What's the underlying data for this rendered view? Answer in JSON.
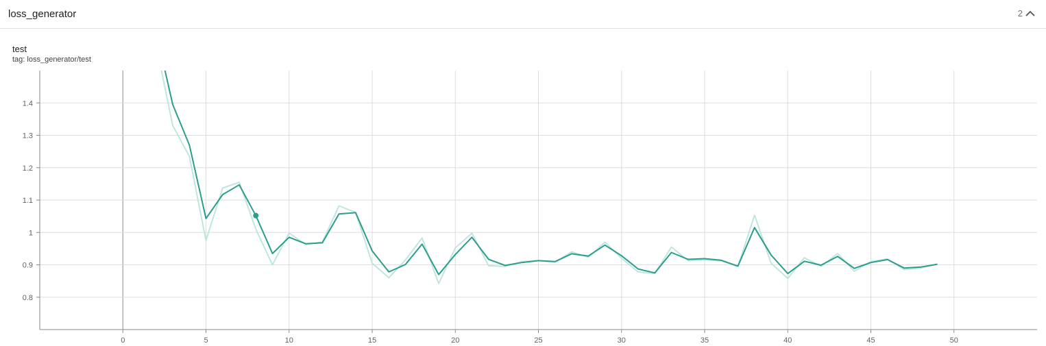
{
  "group": {
    "title": "loss_generator",
    "count": "2",
    "collapse_icon": "chevron-up-icon"
  },
  "card": {
    "title": "test",
    "tag_label": "tag: loss_generator/test"
  },
  "colors": {
    "smoothed_line": "#2a9d8c",
    "raw_line": "#bfe6de",
    "grid": "#dddddd",
    "axis": "#8a8a8a"
  },
  "chart_data": {
    "type": "line",
    "title": "test",
    "xlabel": "",
    "ylabel": "",
    "xlim": [
      -5,
      55
    ],
    "ylim": [
      0.7,
      1.5
    ],
    "x_ticks": [
      0,
      5,
      10,
      15,
      20,
      25,
      30,
      35,
      40,
      45,
      50
    ],
    "y_ticks": [
      0.8,
      0.9,
      1,
      1.1,
      1.2,
      1.3,
      1.4
    ],
    "y_tick_labels": [
      "0.8",
      "0.9",
      "1",
      "1.1",
      "1.2",
      "1.3",
      "1.4"
    ],
    "grid": true,
    "highlighted_point": {
      "x": 8,
      "y": 1.052
    },
    "series": [
      {
        "role": "raw",
        "x": [
          2,
          3,
          4,
          5,
          6,
          7,
          8,
          9,
          10,
          11,
          12,
          13,
          14,
          15,
          16,
          17,
          18,
          19,
          20,
          21,
          22,
          23,
          24,
          25,
          26,
          27,
          28,
          29,
          30,
          31,
          32,
          33,
          34,
          35,
          36,
          37,
          38,
          39,
          40,
          41,
          42,
          43,
          44,
          45,
          46,
          47,
          48,
          49
        ],
        "values": [
          1.58,
          1.33,
          1.235,
          0.975,
          1.137,
          1.155,
          1.01,
          0.9,
          0.998,
          0.963,
          0.97,
          1.082,
          1.062,
          0.905,
          0.86,
          0.915,
          0.983,
          0.842,
          0.952,
          0.998,
          0.897,
          0.895,
          0.91,
          0.913,
          0.908,
          0.94,
          0.923,
          0.97,
          0.92,
          0.878,
          0.873,
          0.955,
          0.913,
          0.915,
          0.912,
          0.895,
          1.053,
          0.905,
          0.858,
          0.922,
          0.895,
          0.935,
          0.88,
          0.91,
          0.918,
          0.885,
          0.89,
          0.902
        ]
      },
      {
        "role": "smoothed",
        "x": [
          2,
          3,
          4,
          5,
          6,
          7,
          8,
          9,
          10,
          11,
          12,
          13,
          14,
          15,
          16,
          17,
          18,
          19,
          20,
          21,
          22,
          23,
          24,
          25,
          26,
          27,
          28,
          29,
          30,
          31,
          32,
          33,
          34,
          35,
          36,
          37,
          38,
          39,
          40,
          41,
          42,
          43,
          44,
          45,
          46,
          47,
          48,
          49
        ],
        "values": [
          1.62,
          1.395,
          1.27,
          1.043,
          1.117,
          1.147,
          1.052,
          0.935,
          0.985,
          0.965,
          0.968,
          1.057,
          1.061,
          0.943,
          0.878,
          0.901,
          0.964,
          0.87,
          0.932,
          0.985,
          0.917,
          0.898,
          0.907,
          0.913,
          0.91,
          0.934,
          0.927,
          0.961,
          0.928,
          0.887,
          0.875,
          0.938,
          0.917,
          0.919,
          0.914,
          0.896,
          1.015,
          0.93,
          0.873,
          0.911,
          0.899,
          0.926,
          0.889,
          0.907,
          0.916,
          0.89,
          0.893,
          0.902
        ]
      }
    ]
  }
}
